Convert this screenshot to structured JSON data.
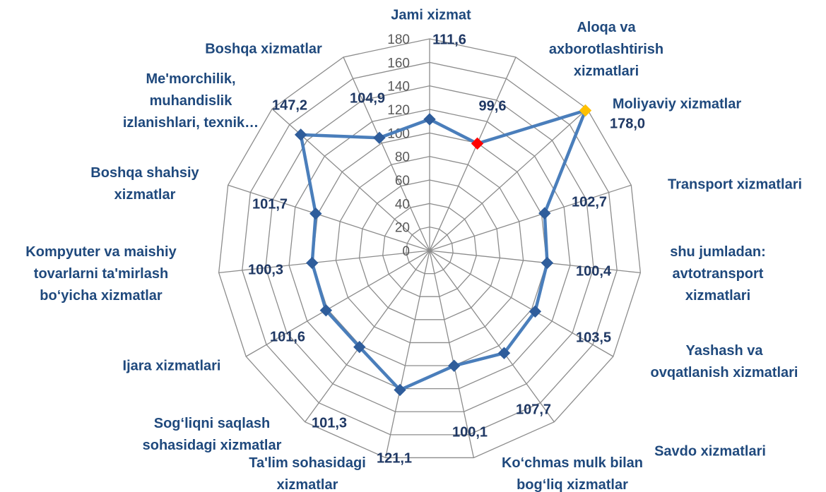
{
  "chart_data": {
    "type": "radar",
    "categories": [
      "Jami xizmat",
      "Aloqa va\naxborotlashtirish\nxizmatlari",
      "Moliyaviy xizmatlar",
      "Transport xizmatlari",
      "shu jumladan:\navtotransport\nxizmatlari",
      "Yashash va\novqatlanish xizmatlari",
      "Savdo xizmatlari",
      "Ko‘chmas mulk bilan\nbog‘liq xizmatlar",
      "Ta'lim sohasidagi\nxizmatlar",
      "Sog‘liqni saqlash\nsohasidagi xizmatlar",
      "Ijara xizmatlari",
      "Kompyuter va maishiy\ntovarlarni ta'mirlash\nbo‘yicha xizmatlar",
      "Boshqa shahsiy\nxizmatlar",
      "Me'morchilik,\nmuhandislik\nizlanishlari, texnik…",
      "Boshqa xizmatlar"
    ],
    "values": [
      111.6,
      99.6,
      178.0,
      102.7,
      100.4,
      103.5,
      107.7,
      100.1,
      121.1,
      101.3,
      101.6,
      100.3,
      101.7,
      147.2,
      104.9
    ],
    "value_labels": [
      "111,6",
      "99,6",
      "178,0",
      "102,7",
      "100,4",
      "103,5",
      "107,7",
      "100,1",
      "121,1",
      "101,3",
      "101,6",
      "100,3",
      "101,7",
      "147,2",
      "104,9"
    ],
    "color": "#4a7ebb",
    "marker_colors": [
      "#2f5d9b",
      "#ff0000",
      "#ffc000",
      "#2f5d9b",
      "#2f5d9b",
      "#2f5d9b",
      "#2f5d9b",
      "#2f5d9b",
      "#2f5d9b",
      "#2f5d9b",
      "#2f5d9b",
      "#2f5d9b",
      "#2f5d9b",
      "#2f5d9b",
      "#2f5d9b"
    ],
    "ylim": [
      0,
      180
    ],
    "yticks": [
      0,
      20,
      40,
      60,
      80,
      100,
      120,
      140,
      160,
      180
    ],
    "grid": true
  }
}
